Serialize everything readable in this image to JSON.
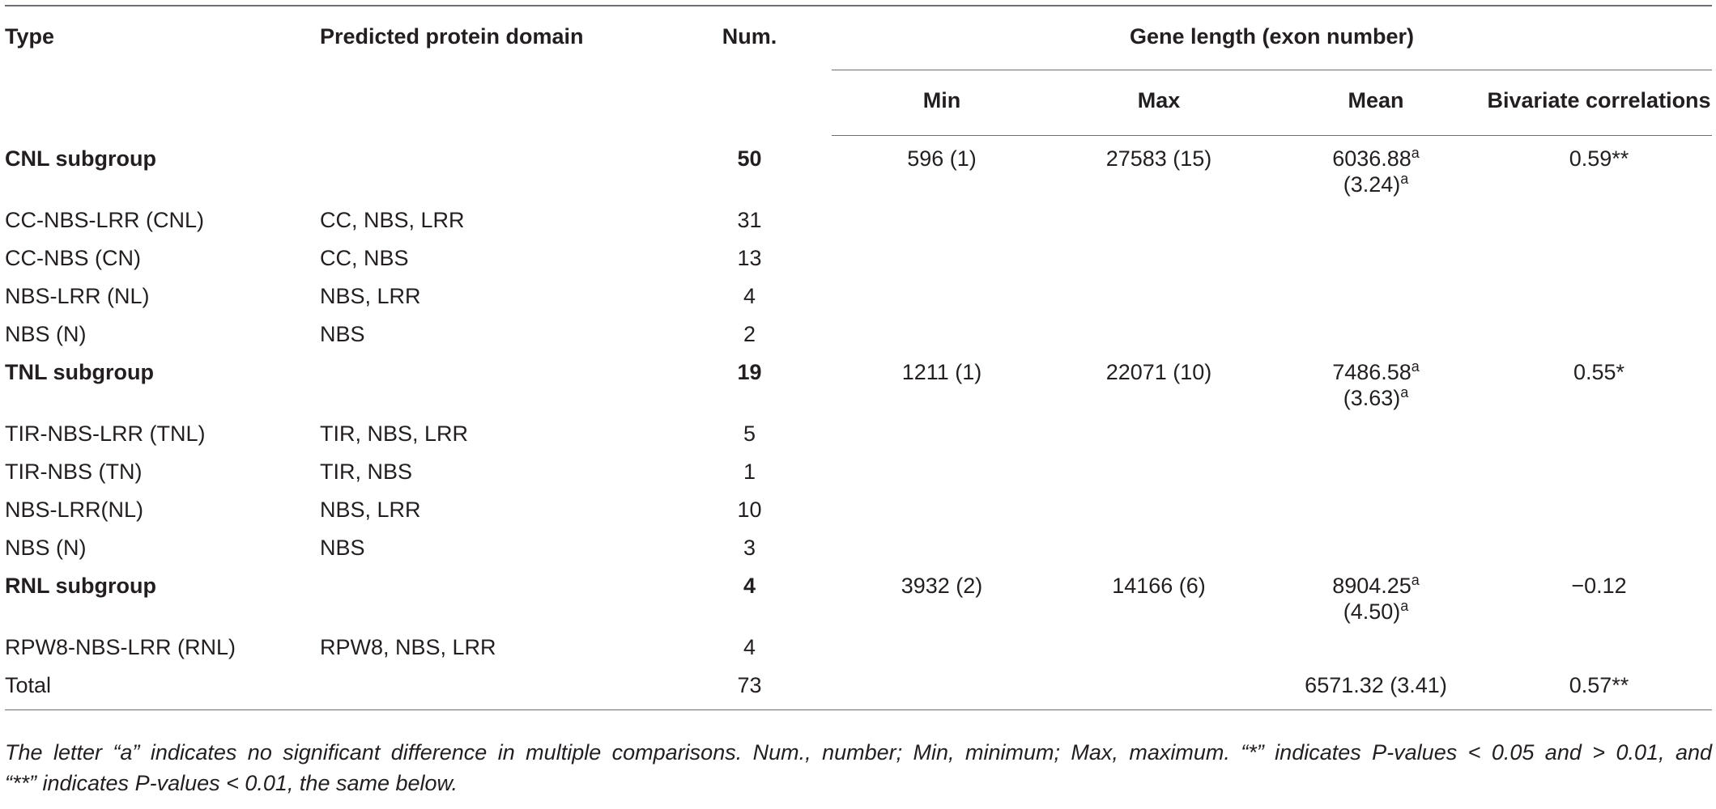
{
  "header": {
    "type": "Type",
    "domain": "Predicted protein domain",
    "num": "Num.",
    "gene_length": "Gene length (exon number)",
    "min": "Min",
    "max": "Max",
    "mean": "Mean",
    "corr": "Bivariate correlations"
  },
  "rows": {
    "cnl": {
      "type": "CNL subgroup",
      "num": "50",
      "min": "596 (1)",
      "max": "27583 (15)",
      "mean1": "6036.88",
      "mean1_sup": "a",
      "mean2": "(3.24)",
      "mean2_sup": "a",
      "corr": "0.59**"
    },
    "cnl_1": {
      "type": "CC-NBS-LRR (CNL)",
      "domain": "CC, NBS, LRR",
      "num": "31"
    },
    "cnl_2": {
      "type": "CC-NBS (CN)",
      "domain": "CC, NBS",
      "num": "13"
    },
    "cnl_3": {
      "type": "NBS-LRR (NL)",
      "domain": "NBS, LRR",
      "num": "4"
    },
    "cnl_4": {
      "type": "NBS (N)",
      "domain": "NBS",
      "num": "2"
    },
    "tnl": {
      "type": "TNL subgroup",
      "num": "19",
      "min": "1211 (1)",
      "max": "22071 (10)",
      "mean1": "7486.58",
      "mean1_sup": "a",
      "mean2": "(3.63)",
      "mean2_sup": "a",
      "corr": "0.55*"
    },
    "tnl_1": {
      "type": "TIR-NBS-LRR (TNL)",
      "domain": "TIR, NBS, LRR",
      "num": "5"
    },
    "tnl_2": {
      "type": "TIR-NBS (TN)",
      "domain": "TIR, NBS",
      "num": "1"
    },
    "tnl_3": {
      "type": "NBS-LRR(NL)",
      "domain": "NBS, LRR",
      "num": "10"
    },
    "tnl_4": {
      "type": "NBS (N)",
      "domain": "NBS",
      "num": "3"
    },
    "rnl": {
      "type": "RNL subgroup",
      "num": "4",
      "min": "3932 (2)",
      "max": "14166 (6)",
      "mean1": "8904.25",
      "mean1_sup": "a",
      "mean2": "(4.50)",
      "mean2_sup": "a",
      "corr": "−0.12"
    },
    "rnl_1": {
      "type": "RPW8-NBS-LRR (RNL)",
      "domain": "RPW8, NBS, LRR",
      "num": "4"
    },
    "total": {
      "type": "Total",
      "num": "73",
      "mean": "6571.32 (3.41)",
      "corr": "0.57**"
    }
  },
  "footnote": {
    "line1": "The letter “a” indicates no significant difference in multiple comparisons. Num., number; Min, minimum; Max, maximum. “*” indicates P-values < 0.05 and > 0.01, and",
    "line2": "“**” indicates P-values < 0.01, the same below."
  }
}
